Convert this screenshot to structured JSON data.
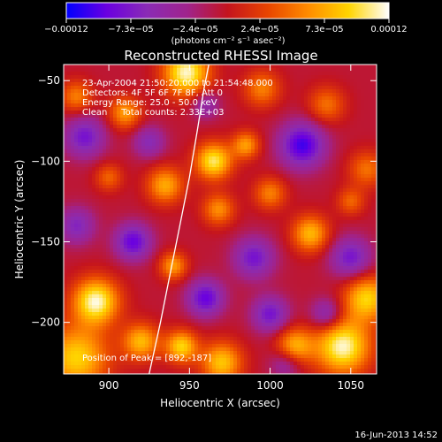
{
  "chart_data": {
    "type": "heatmap",
    "title": "Reconstructed RHESSI Image",
    "xlabel": "Heliocentric X (arcsec)",
    "ylabel": "Heliocentric Y (arcsec)",
    "xlim": [
      872,
      1066
    ],
    "ylim": [
      -232,
      -40
    ],
    "x_ticks": [
      {
        "value": 900,
        "label": "900"
      },
      {
        "value": 950,
        "label": "950"
      },
      {
        "value": 1000,
        "label": "1000"
      },
      {
        "value": 1050,
        "label": "1050"
      }
    ],
    "y_ticks": [
      {
        "value": -50,
        "label": "−50"
      },
      {
        "value": -100,
        "label": "−100"
      },
      {
        "value": -150,
        "label": "−150"
      },
      {
        "value": -200,
        "label": "−200"
      }
    ],
    "colorbar": {
      "min": -0.00012,
      "max": 0.00012,
      "tick_labels": [
        "−0.00012",
        "−7.3e−05",
        "−2.4e−05",
        "2.4e−05",
        "7.3e−05",
        "0.00012"
      ],
      "unit_label": "(photons cm⁻² s⁻¹ asec⁻²)",
      "colormap": [
        "#0000ff",
        "#6a00e0",
        "#8a2bb5",
        "#a0238c",
        "#c4141e",
        "#e84500",
        "#ff8c00",
        "#ffd400",
        "#ffffff"
      ]
    },
    "annotations": [
      "23-Apr-2004 21:50:20.000 to 21:54:48.000",
      "Detectors: 4F 5F 6F 7F 8F, Att 0",
      "Energy Range: 25.0 - 50.0 keV",
      "Clean     Total counts: 2.33E+03"
    ],
    "peak_label": "Position of Peak = [892,-187]",
    "limb_curve": [
      [
        925,
        -232
      ],
      [
        932,
        -200
      ],
      [
        938,
        -170
      ],
      [
        944,
        -140
      ],
      [
        950,
        -110
      ],
      [
        955,
        -80
      ],
      [
        959,
        -55
      ],
      [
        962,
        -40
      ]
    ],
    "sources": [
      {
        "x": 948,
        "y": -45,
        "a": 1.0,
        "s": 10
      },
      {
        "x": 892,
        "y": -187,
        "a": 1.0,
        "s": 10
      },
      {
        "x": 1045,
        "y": -215,
        "a": 1.0,
        "s": 12
      },
      {
        "x": 880,
        "y": -222,
        "a": 0.8,
        "s": 14
      },
      {
        "x": 920,
        "y": -212,
        "a": 0.7,
        "s": 8
      },
      {
        "x": 945,
        "y": -215,
        "a": 0.8,
        "s": 7
      },
      {
        "x": 970,
        "y": -225,
        "a": 0.75,
        "s": 9
      },
      {
        "x": 1015,
        "y": -215,
        "a": 0.7,
        "s": 8
      },
      {
        "x": 1060,
        "y": -185,
        "a": 0.8,
        "s": 10
      },
      {
        "x": 1025,
        "y": -145,
        "a": 0.7,
        "s": 8
      },
      {
        "x": 1000,
        "y": -120,
        "a": 0.5,
        "s": 7
      },
      {
        "x": 965,
        "y": -100,
        "a": 0.9,
        "s": 8
      },
      {
        "x": 968,
        "y": -130,
        "a": 0.55,
        "s": 7
      },
      {
        "x": 985,
        "y": -90,
        "a": 0.6,
        "s": 6
      },
      {
        "x": 935,
        "y": -115,
        "a": 0.65,
        "s": 8
      },
      {
        "x": 910,
        "y": -70,
        "a": 0.6,
        "s": 7
      },
      {
        "x": 900,
        "y": -110,
        "a": 0.4,
        "s": 6
      },
      {
        "x": 880,
        "y": -60,
        "a": 0.5,
        "s": 7
      },
      {
        "x": 995,
        "y": -55,
        "a": 0.5,
        "s": 8
      },
      {
        "x": 1035,
        "y": -65,
        "a": 0.45,
        "s": 8
      },
      {
        "x": 1060,
        "y": -105,
        "a": 0.45,
        "s": 8
      },
      {
        "x": 940,
        "y": -165,
        "a": 0.6,
        "s": 6
      },
      {
        "x": 1050,
        "y": -125,
        "a": 0.4,
        "s": 6
      },
      {
        "x": 915,
        "y": -150,
        "a": -0.7,
        "s": 8
      },
      {
        "x": 885,
        "y": -85,
        "a": -0.6,
        "s": 9
      },
      {
        "x": 1020,
        "y": -90,
        "a": -0.8,
        "s": 10
      },
      {
        "x": 1050,
        "y": -160,
        "a": -0.6,
        "s": 9
      },
      {
        "x": 990,
        "y": -160,
        "a": -0.6,
        "s": 9
      },
      {
        "x": 960,
        "y": -185,
        "a": -0.7,
        "s": 8
      },
      {
        "x": 1000,
        "y": -195,
        "a": -0.6,
        "s": 8
      },
      {
        "x": 880,
        "y": -140,
        "a": -0.5,
        "s": 8
      },
      {
        "x": 1035,
        "y": -195,
        "a": -0.5,
        "s": 7
      },
      {
        "x": 925,
        "y": -88,
        "a": -0.45,
        "s": 7
      },
      {
        "x": 960,
        "y": -65,
        "a": -0.4,
        "s": 6
      },
      {
        "x": 1010,
        "y": -225,
        "a": -0.4,
        "s": 7
      }
    ]
  },
  "footer": {
    "timestamp": "16-Jun-2013 14:52"
  }
}
